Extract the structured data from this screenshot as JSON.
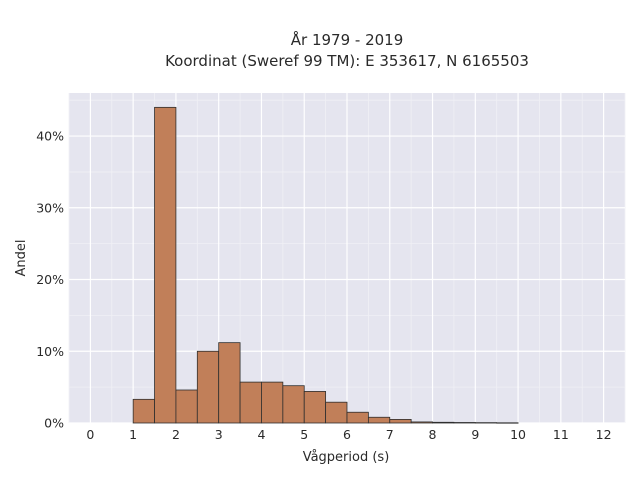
{
  "chart_data": {
    "type": "bar",
    "title": "År 1979 - 2019",
    "subtitle": "Koordinat (Sweref 99 TM): E 353617, N 6165503",
    "xlabel": "Vågperiod (s)",
    "ylabel": "Andel",
    "xlim": [
      -0.5,
      12.5
    ],
    "ylim": [
      0,
      46
    ],
    "x_ticks": [
      0,
      1,
      2,
      3,
      4,
      5,
      6,
      7,
      8,
      9,
      10,
      11,
      12
    ],
    "x_tick_labels": [
      "0",
      "1",
      "2",
      "3",
      "4",
      "5",
      "6",
      "7",
      "8",
      "9",
      "10",
      "11",
      "12"
    ],
    "y_ticks": [
      0,
      10,
      20,
      30,
      40
    ],
    "y_tick_labels": [
      "0%",
      "10%",
      "20%",
      "30%",
      "40%"
    ],
    "bin_width": 0.5,
    "bins": [
      {
        "x0": 1.0,
        "x1": 1.5,
        "value": 3.3
      },
      {
        "x0": 1.5,
        "x1": 2.0,
        "value": 44.0
      },
      {
        "x0": 2.0,
        "x1": 2.5,
        "value": 4.6
      },
      {
        "x0": 2.5,
        "x1": 3.0,
        "value": 10.0
      },
      {
        "x0": 3.0,
        "x1": 3.5,
        "value": 11.2
      },
      {
        "x0": 3.5,
        "x1": 4.0,
        "value": 5.7
      },
      {
        "x0": 4.0,
        "x1": 4.5,
        "value": 5.7
      },
      {
        "x0": 4.5,
        "x1": 5.0,
        "value": 5.2
      },
      {
        "x0": 5.0,
        "x1": 5.5,
        "value": 4.4
      },
      {
        "x0": 5.5,
        "x1": 6.0,
        "value": 2.9
      },
      {
        "x0": 6.0,
        "x1": 6.5,
        "value": 1.5
      },
      {
        "x0": 6.5,
        "x1": 7.0,
        "value": 0.8
      },
      {
        "x0": 7.0,
        "x1": 7.5,
        "value": 0.5
      },
      {
        "x0": 7.5,
        "x1": 8.0,
        "value": 0.15
      },
      {
        "x0": 8.0,
        "x1": 8.5,
        "value": 0.1
      },
      {
        "x0": 8.5,
        "x1": 9.0,
        "value": 0.07
      },
      {
        "x0": 9.0,
        "x1": 9.5,
        "value": 0.05
      },
      {
        "x0": 9.5,
        "x1": 10.0,
        "value": 0.03
      }
    ],
    "grid": true,
    "legend": "none",
    "colors": {
      "bar_fill": "#c17f59",
      "bar_edge": "#2e2e2e",
      "plot_background": "#e5e5ef",
      "grid_major": "#ffffff",
      "grid_minor": "#f0f0f5"
    }
  }
}
